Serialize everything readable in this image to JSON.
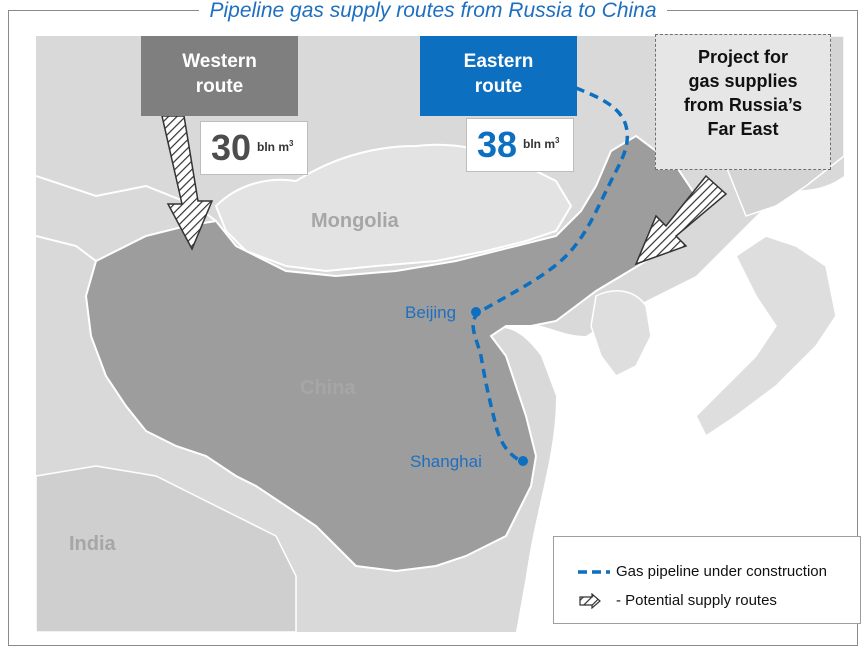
{
  "title": "Pipeline gas supply routes from Russia to China",
  "colors": {
    "pipeline": "#0d6fc0",
    "western_box": "#7f7f7f",
    "eastern_box": "#0d6fc0",
    "land": "#d9d9d9",
    "china": "#9d9d9d",
    "mongolia": "#e3e3e3"
  },
  "routes": {
    "western": {
      "label_line1": "Western",
      "label_line2": "route",
      "volume": "30",
      "unit": "bln m",
      "unit_sup": "3"
    },
    "eastern": {
      "label_line1": "Eastern",
      "label_line2": "route",
      "volume": "38",
      "unit": "bln m",
      "unit_sup": "3"
    },
    "far_east": {
      "line1": "Project for",
      "line2": "gas supplies",
      "line3": "from Russia’s",
      "line4": "Far East"
    }
  },
  "regions": {
    "mongolia": "Mongolia",
    "china": "China",
    "india": "India"
  },
  "cities": {
    "beijing": "Beijing",
    "shanghai": "Shanghai"
  },
  "legend": {
    "pipeline_label": "Gas pipeline under construction",
    "potential_label": "-   Potential supply routes"
  }
}
